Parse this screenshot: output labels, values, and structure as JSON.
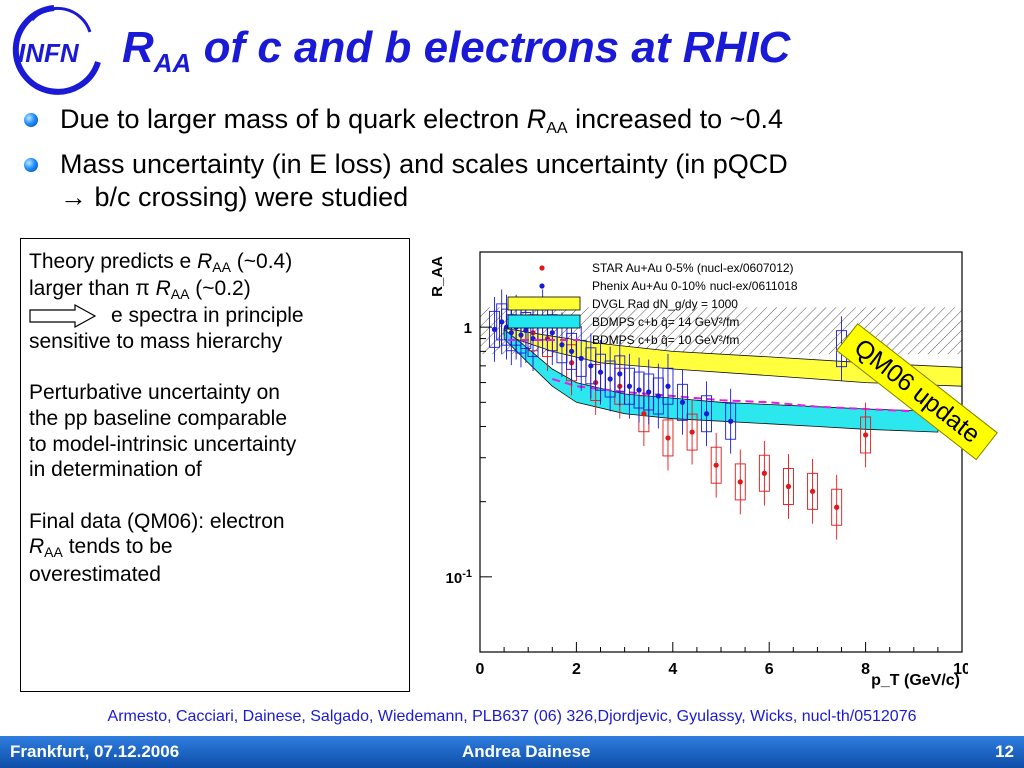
{
  "logo": {
    "text": "INFN",
    "icon": "infn-logo"
  },
  "title": {
    "main": "R",
    "sub": "AA",
    "rest": " of c and b electrons at RHIC"
  },
  "bullets": [
    {
      "before": "Due to larger mass of b quark electron ",
      "sym": "R",
      "sub": "AA",
      "after": " increased to ~0.4"
    },
    {
      "line1": "Mass uncertainty (in E loss) and scales uncertainty (in pQCD",
      "line2": "→ b/c crossing) were studied"
    }
  ],
  "textbox": {
    "p1_a": "Theory predicts e ",
    "p1_sym": "R",
    "p1_sub": "AA",
    "p1_b": " (~0.4)",
    "p1_c": "larger than π ",
    "p1_sym2": "R",
    "p1_sub2": "AA",
    "p1_d": " (~0.2)",
    "p1_e": "e spectra in principle",
    "p1_f": "sensitive to mass hierarchy",
    "p2": [
      "Perturbative uncertainty on",
      "the pp baseline comparable",
      "to model-intrinsic uncertainty",
      "in determination of"
    ],
    "p3_a": "Final data (QM06): electron",
    "p3_sym": "R",
    "p3_sub": "AA",
    "p3_b": " tends to be",
    "p3_c": "overestimated"
  },
  "chart_data": {
    "type": "scatter",
    "ylabel": "R_AA",
    "xlabel": "p_T (GeV/c)",
    "xlim": [
      0,
      10
    ],
    "ylim": [
      0.05,
      2.0
    ],
    "yscale": "log",
    "xticks": [
      "0",
      "2",
      "4",
      "6",
      "8",
      "10"
    ],
    "yticks": [
      {
        "label": "1",
        "value": 1
      },
      {
        "label": "10^-1",
        "value": 0.1
      }
    ],
    "legend": [
      {
        "label": "STAR Au+Au 0-5% (nucl-ex/0607012)",
        "color": "#e01818",
        "kind": "dot"
      },
      {
        "label": "Phenix Au+Au  0-10%",
        "extra": "nucl-ex/0611018",
        "color": "#1a1ad6",
        "kind": "dot"
      },
      {
        "label": "DVGL Rad dN_g/dy = 1000",
        "color": "#ffff33",
        "kind": "box"
      },
      {
        "label": "BDMPS c+b q̂= 14 GeV²/fm",
        "color": "#22e6ef",
        "kind": "box"
      },
      {
        "label": "BDMPS c+b q̂= 10 GeV²/fm",
        "color": "#e020e0",
        "kind": "dash"
      }
    ],
    "series": [
      {
        "name": "STAR Au+Au 0-5%",
        "color": "#e01818",
        "x": [
          1.1,
          1.4,
          1.9,
          2.4,
          2.9,
          3.4,
          3.9,
          4.4,
          4.9,
          5.4,
          5.9,
          6.4,
          6.9,
          7.4,
          8.0
        ],
        "y": [
          0.95,
          0.9,
          0.72,
          0.6,
          0.58,
          0.45,
          0.36,
          0.38,
          0.28,
          0.24,
          0.26,
          0.23,
          0.22,
          0.19,
          0.37
        ]
      },
      {
        "name": "Phenix Au+Au 0-10%",
        "color": "#1a1ad6",
        "x": [
          0.3,
          0.45,
          0.55,
          0.65,
          0.75,
          0.85,
          0.95,
          1.1,
          1.3,
          1.5,
          1.7,
          1.9,
          2.1,
          2.3,
          2.5,
          2.7,
          2.9,
          3.1,
          3.3,
          3.5,
          3.7,
          3.9,
          4.2,
          4.7,
          5.2,
          7.5
        ],
        "y": [
          0.98,
          1.05,
          1.0,
          0.95,
          1.0,
          0.93,
          0.97,
          0.9,
          1.05,
          0.95,
          0.85,
          0.8,
          0.75,
          0.7,
          0.66,
          0.62,
          0.65,
          0.58,
          0.56,
          0.55,
          0.53,
          0.58,
          0.5,
          0.45,
          0.42,
          0.82
        ]
      }
    ],
    "bands": [
      {
        "name": "DVGL Rad dN_g/dy = 1000",
        "color": "#ffff33",
        "x": [
          0.5,
          1.5,
          2.5,
          4,
          6,
          8,
          10
        ],
        "lower": [
          0.93,
          0.8,
          0.72,
          0.68,
          0.64,
          0.6,
          0.58
        ],
        "upper": [
          0.99,
          0.92,
          0.86,
          0.8,
          0.76,
          0.72,
          0.69
        ]
      },
      {
        "name": "BDMPS c+b q̂= 14 GeV²/fm",
        "color": "#22e6ef",
        "x": [
          0.5,
          1.0,
          1.5,
          2,
          3,
          4,
          5,
          6,
          7,
          8,
          9.5
        ],
        "lower": [
          0.9,
          0.72,
          0.58,
          0.5,
          0.45,
          0.43,
          0.42,
          0.41,
          0.4,
          0.39,
          0.38
        ],
        "upper": [
          0.98,
          0.82,
          0.68,
          0.6,
          0.54,
          0.52,
          0.5,
          0.49,
          0.48,
          0.47,
          0.46
        ]
      }
    ],
    "curves": [
      {
        "name": "BDMPS c+b q̂= 10 GeV²/fm",
        "color": "#e020e0",
        "x": [
          1.5,
          2,
          3,
          4,
          5,
          6,
          7,
          8,
          9,
          10
        ],
        "y": [
          0.62,
          0.58,
          0.55,
          0.53,
          0.51,
          0.5,
          0.48,
          0.47,
          0.46,
          0.45
        ]
      }
    ],
    "hatched_band": {
      "x": [
        0,
        10
      ],
      "lower": 0.78,
      "upper": 1.2
    }
  },
  "stamp": "QM06 update",
  "reference": "Armesto, Cacciari, Dainese, Salgado, Wiedemann, PLB637 (06) 326,Djordjevic, Gyulassy, Wicks, nucl-th/0512076",
  "footer": {
    "left": "Frankfurt, 07.12.2006",
    "center": "Andrea Dainese",
    "right": "12"
  }
}
